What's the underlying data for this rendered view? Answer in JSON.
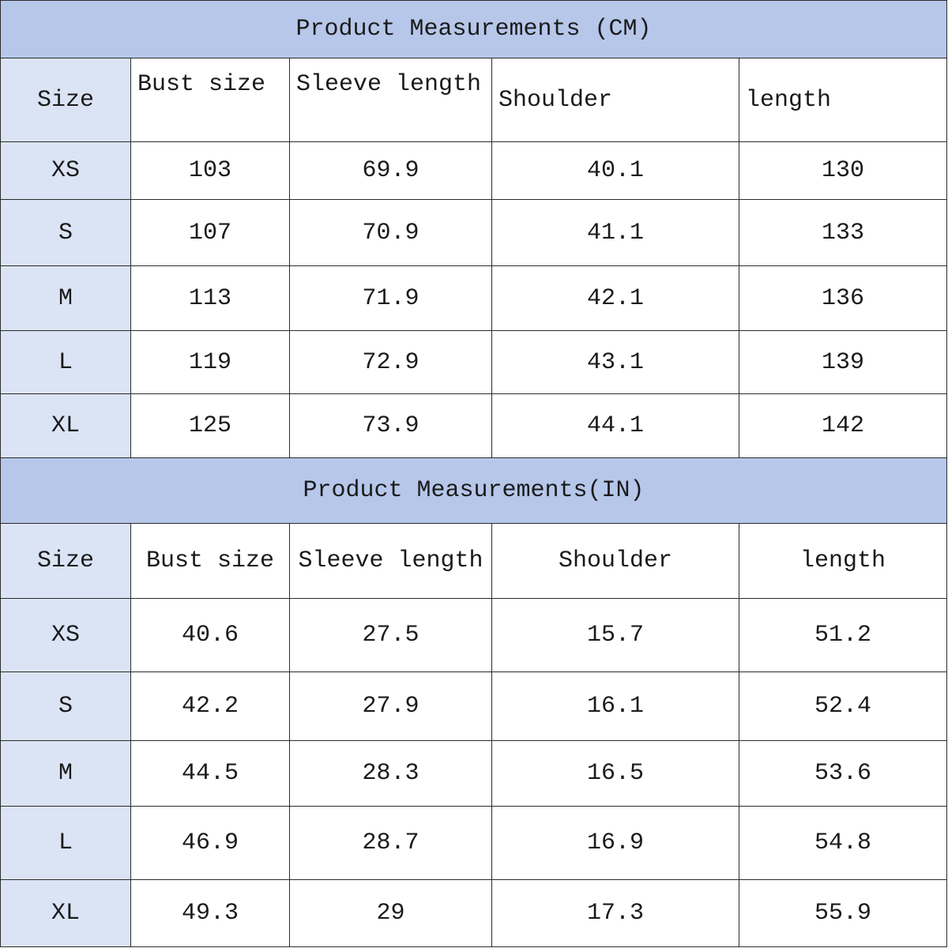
{
  "tables": [
    {
      "title": "Product Measurements (CM)",
      "header": [
        "Size",
        "Bust size",
        "Sleeve length",
        "Shoulder",
        "length"
      ],
      "rows": [
        [
          "XS",
          103,
          69.9,
          40.1,
          130
        ],
        [
          "S",
          107,
          70.9,
          41.1,
          133
        ],
        [
          "M",
          113,
          71.9,
          42.1,
          136
        ],
        [
          "L",
          119,
          72.9,
          43.1,
          139
        ],
        [
          "XL",
          125,
          73.9,
          44.1,
          142
        ]
      ]
    },
    {
      "title": "Product Measurements(IN)",
      "header": [
        "Size",
        "Bust size",
        "Sleeve length",
        "Shoulder",
        "length"
      ],
      "rows": [
        [
          "XS",
          40.6,
          27.5,
          15.7,
          51.2
        ],
        [
          "S",
          42.2,
          27.9,
          16.1,
          52.4
        ],
        [
          "M",
          44.5,
          28.3,
          16.5,
          53.6
        ],
        [
          "L",
          46.9,
          28.7,
          16.9,
          54.8
        ],
        [
          "XL",
          49.3,
          29,
          17.3,
          55.9
        ]
      ]
    }
  ]
}
